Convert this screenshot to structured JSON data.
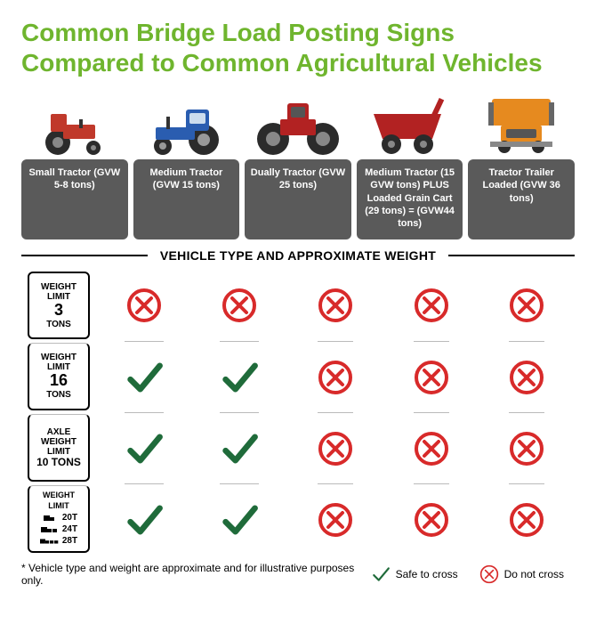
{
  "title": "Common Bridge Load Posting Signs Compared to Common Agricultural Vehicles",
  "sectionLabel": "VEHICLE TYPE AND APPROXIMATE WEIGHT",
  "footnote": "* Vehicle type and weight are approximate and for illustrative purposes only.",
  "legend": {
    "safe": "Safe to cross",
    "noCross": "Do not cross"
  },
  "colors": {
    "titleGreen": "#6fb52e",
    "boxGray": "#5a5a5a",
    "checkGreen": "#1f6b3a",
    "xRed": "#d82a2a",
    "tractorRed": "#c0392b",
    "tractorBlue": "#2a5db0",
    "tractorDarkRed": "#b22222",
    "trailerOrange": "#e68a1f",
    "wheelDark": "#2b2b2b"
  },
  "vehicles": [
    {
      "id": "small-tractor",
      "label": "Small Tractor (GVW 5-8 tons)"
    },
    {
      "id": "medium-tractor",
      "label": "Medium Tractor (GVW 15 tons)"
    },
    {
      "id": "dually-tractor",
      "label": "Dually Tractor (GVW 25 tons)"
    },
    {
      "id": "medium-plus-cart",
      "label": "Medium Tractor (15 GVW tons) PLUS Loaded Grain Cart (29 tons) = (GVW44 tons)"
    },
    {
      "id": "tractor-trailer",
      "label": "Tractor Trailer Loaded (GVW 36 tons)"
    }
  ],
  "signs": [
    {
      "id": "weight-3",
      "type": "single",
      "line1": "WEIGHT",
      "line2": "LIMIT",
      "value": "3",
      "unit": "TONS"
    },
    {
      "id": "weight-16",
      "type": "single",
      "line1": "WEIGHT",
      "line2": "LIMIT",
      "value": "16",
      "unit": "TONS"
    },
    {
      "id": "axle-10",
      "type": "axle",
      "line1": "AXLE",
      "line2": "WEIGHT",
      "line3": "LIMIT",
      "value": "10 TONS"
    },
    {
      "id": "multi",
      "type": "multi",
      "line1": "WEIGHT",
      "line2": "LIMIT",
      "t1": "20T",
      "t2": "24T",
      "t3": "28T"
    }
  ],
  "matrix": [
    [
      "x",
      "x",
      "x",
      "x",
      "x"
    ],
    [
      "c",
      "c",
      "x",
      "x",
      "x"
    ],
    [
      "c",
      "c",
      "x",
      "x",
      "x"
    ],
    [
      "c",
      "c",
      "x",
      "x",
      "x"
    ]
  ]
}
